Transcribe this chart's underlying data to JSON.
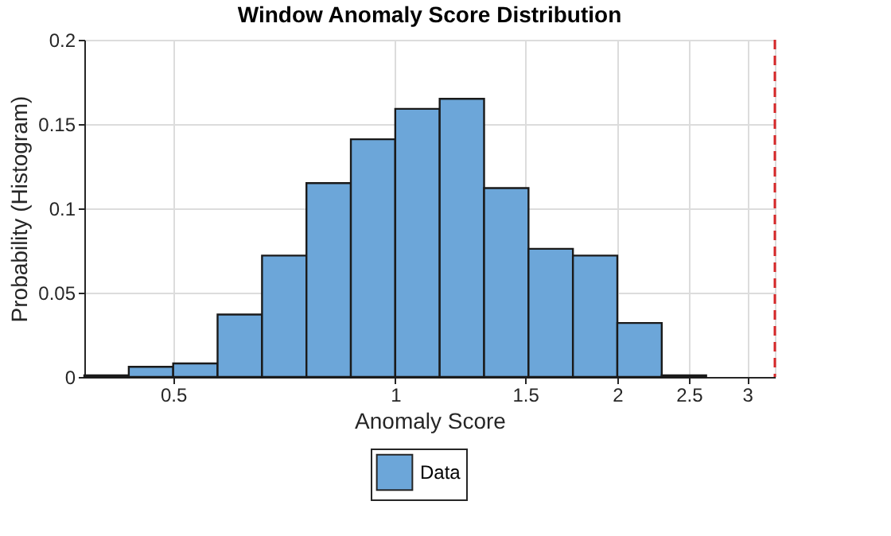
{
  "chart_data": {
    "type": "histogram",
    "title": "Window Anomaly Score Distribution",
    "xlabel": "Anomaly Score",
    "ylabel": "Probability (Histogram)",
    "bins": [
      0.3789,
      0.4353,
      0.5,
      0.5743,
      0.6598,
      0.7579,
      0.8706,
      1,
      1.1487,
      1.3195,
      1.5157,
      1.7411,
      2,
      2.2974,
      2.639
    ],
    "series": [
      {
        "name": "Data",
        "color": "#6ca6d9",
        "values": [
          0.001,
          0.006,
          0.008,
          0.037,
          0.072,
          0.115,
          0.141,
          0.159,
          0.165,
          0.112,
          0.076,
          0.072,
          0.032,
          0.001
        ]
      }
    ],
    "log": "x",
    "xlim": [
      0.3789,
      3.27
    ],
    "xticks": [
      0.5,
      1,
      1.5,
      2,
      2.5,
      3
    ],
    "ylim": [
      0,
      0.2
    ],
    "yticks": [
      0,
      0.05,
      0.1,
      0.15,
      0.2
    ],
    "grid": true,
    "legend": "bottom",
    "ref_lines": [
      {
        "axis": "x",
        "value": 3.27,
        "color": "#d62728",
        "line_style": "dashed"
      }
    ]
  }
}
